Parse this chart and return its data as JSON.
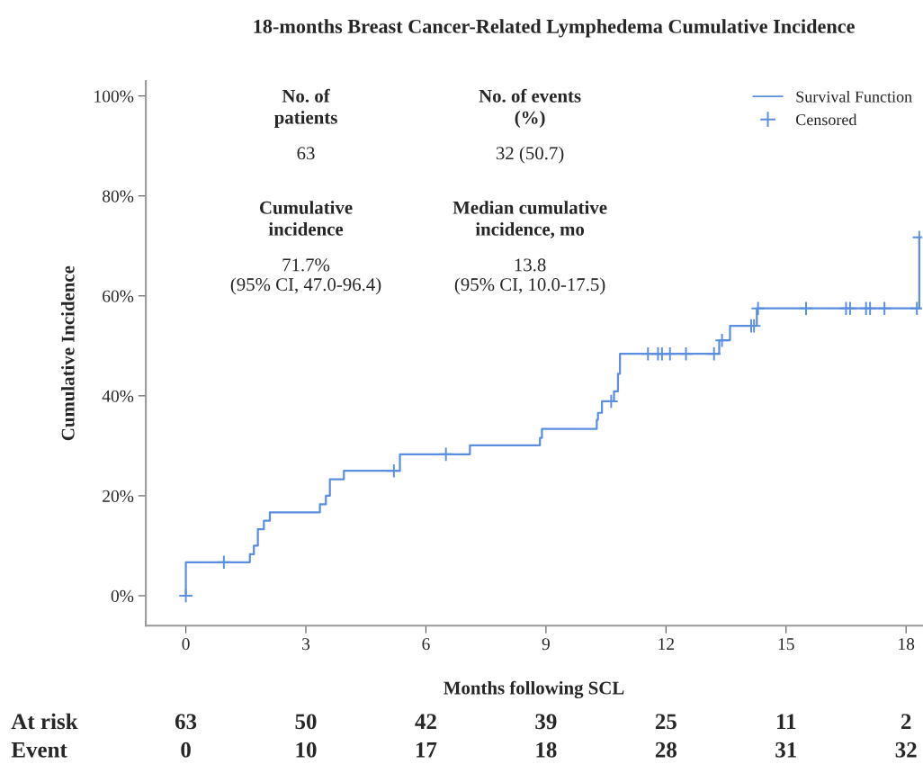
{
  "chart_data": {
    "type": "step",
    "title": "18-months Breast Cancer-Related Lymphedema Cumulative Incidence",
    "xlabel": "Months following SCL",
    "ylabel": "Cumulative Incidence",
    "xlim": [
      -1,
      18.4
    ],
    "ylim": [
      -6,
      103
    ],
    "xticks": [
      0,
      3,
      6,
      9,
      12,
      15,
      18
    ],
    "yticks": [
      {
        "value": 0,
        "label": "0%"
      },
      {
        "value": 20,
        "label": "20%"
      },
      {
        "value": 40,
        "label": "40%"
      },
      {
        "value": 60,
        "label": "60%"
      },
      {
        "value": 80,
        "label": "80%"
      },
      {
        "value": 100,
        "label": "100%"
      }
    ],
    "grid": false,
    "legend": "top right",
    "series": [
      {
        "name": "Survival Function",
        "color": "#5a8ee0",
        "marker": "none",
        "x": [
          0,
          0,
          1.6,
          1.7,
          1.8,
          1.95,
          2.1,
          3.35,
          3.5,
          3.6,
          3.95,
          5.35,
          7.1,
          8.85,
          8.9,
          10.27,
          10.3,
          10.4,
          10.7,
          10.8,
          10.85,
          13.33,
          13.6,
          14.27,
          18.33
        ],
        "values": [
          0,
          6.7,
          8.3,
          10.0,
          13.3,
          15.0,
          16.7,
          18.3,
          20.0,
          23.3,
          25.0,
          28.3,
          30.1,
          31.6,
          33.4,
          35.2,
          36.6,
          38.9,
          40.9,
          44.4,
          48.4,
          51.1,
          54.0,
          57.5,
          71.7
        ]
      },
      {
        "name": "Censored",
        "type": "scatter",
        "color": "#5a8ee0",
        "marker": "cross",
        "x": [
          0,
          0.95,
          5.2,
          6.5,
          10.63,
          11.55,
          11.8,
          11.9,
          12.1,
          12.5,
          13.2,
          13.4,
          14.13,
          14.2,
          14.3,
          15.5,
          16.5,
          16.6,
          17.0,
          17.1,
          17.46,
          18.27,
          18.33
        ],
        "values": [
          0,
          6.7,
          25.0,
          28.3,
          38.9,
          48.4,
          48.4,
          48.4,
          48.4,
          48.4,
          48.4,
          51.1,
          54.0,
          54.0,
          57.5,
          57.5,
          57.5,
          57.5,
          57.5,
          57.5,
          57.5,
          57.5,
          71.7
        ]
      }
    ],
    "annotations": [
      "No. of\npatients",
      "63",
      "No. of events\n(%)",
      "32 (50.7)",
      "Cumulative\nincidence",
      "71.7%\n(95% CI, 47.0-96.4)",
      "Median cumulative\nincidence, mo",
      "13.8\n(95% CI, 10.0-17.5)",
      "At risk",
      "63",
      "50",
      "42",
      "39",
      "25",
      "11",
      "2",
      "Event",
      "0",
      "10",
      "17",
      "18",
      "28",
      "31",
      "32"
    ]
  }
}
